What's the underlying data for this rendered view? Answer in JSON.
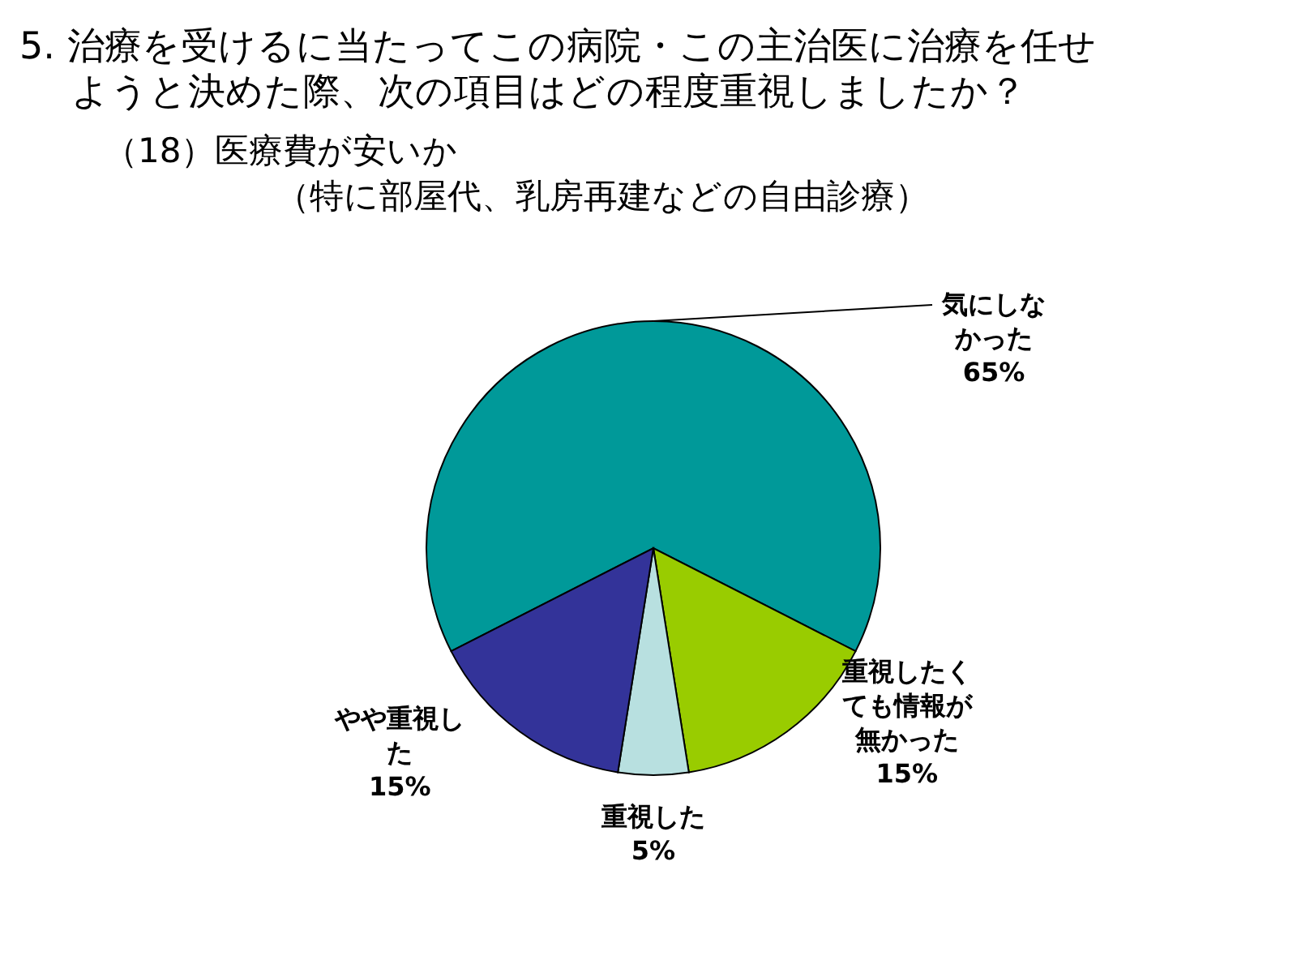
{
  "chart_data": {
    "type": "pie",
    "title": "5. 治療を受けるに当たってこの病院・この主治医に治療を任せようと決めた際、次の項目はどの程度重視しましたか？",
    "subtitle": "（18）医療費が安いか（特に部屋代、乳房再建などの自由診療）",
    "categories": [
      "気にしなかった",
      "重視したくても情報が無かった",
      "重視した",
      "やや重視した"
    ],
    "values": [
      65,
      15,
      5,
      15
    ],
    "colors": [
      "#009999",
      "#99cc00",
      "#b8e0e0",
      "#333399"
    ],
    "value_labels": [
      "65%",
      "15%",
      "5%",
      "15%"
    ]
  }
}
